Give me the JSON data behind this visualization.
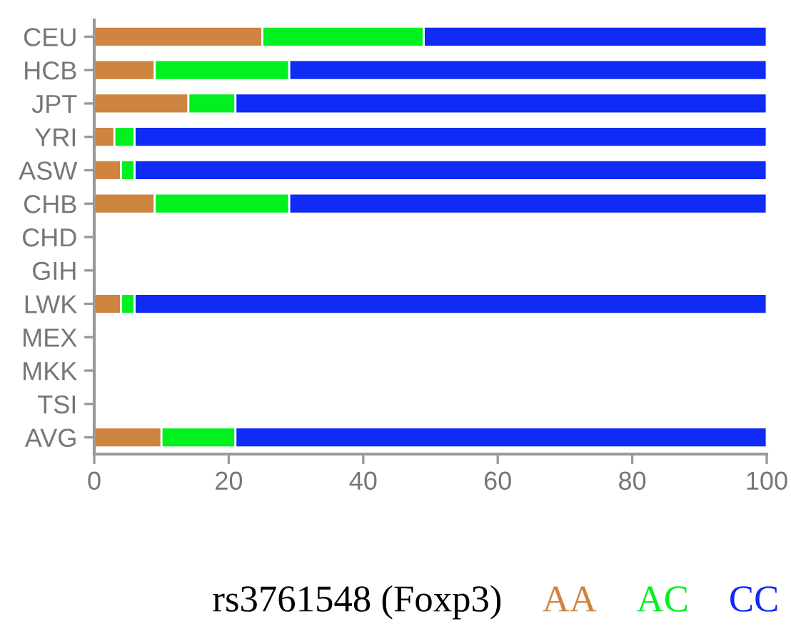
{
  "chart_data": {
    "type": "bar",
    "orientation": "horizontal",
    "stacked": true,
    "categories": [
      "CEU",
      "HCB",
      "JPT",
      "YRI",
      "ASW",
      "CHB",
      "CHD",
      "GIH",
      "LWK",
      "MEX",
      "MKK",
      "TSI",
      "AVG"
    ],
    "series": [
      {
        "name": "AA",
        "color": "#cd853f",
        "values": [
          25,
          9,
          14,
          3,
          4,
          9,
          null,
          null,
          4,
          null,
          null,
          null,
          10
        ]
      },
      {
        "name": "AC",
        "color": "#00f020",
        "values": [
          24,
          20,
          7,
          3,
          2,
          20,
          null,
          null,
          2,
          null,
          null,
          null,
          11
        ]
      },
      {
        "name": "CC",
        "color": "#0f2bf5",
        "values": [
          51,
          71,
          79,
          94,
          94,
          71,
          null,
          null,
          94,
          null,
          null,
          null,
          79
        ]
      }
    ],
    "legend_title": "rs3761548 (Foxp3)",
    "legend": "bottom",
    "xlim": [
      0,
      100
    ],
    "xticks": [
      0,
      20,
      40,
      60,
      80,
      100
    ],
    "grid": false
  }
}
